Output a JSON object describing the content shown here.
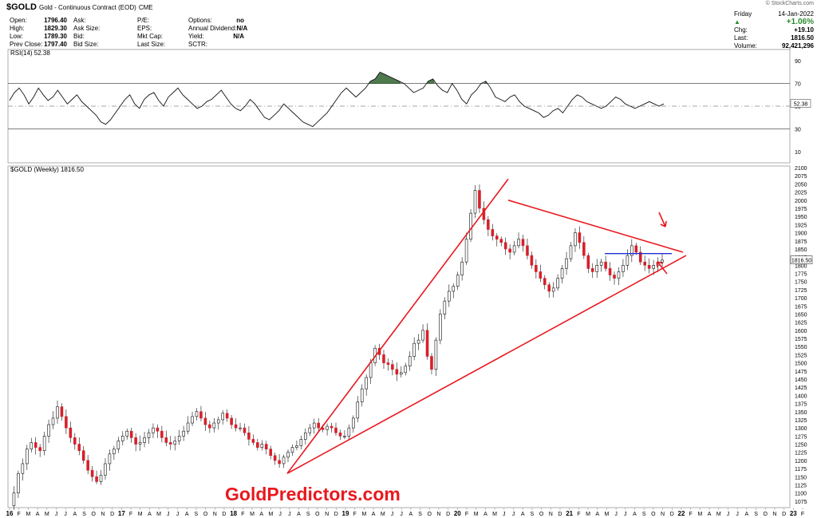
{
  "header": {
    "symbol": "$GOLD",
    "name": "Gold - Continuous Contract (EOD)",
    "exchange": "CME",
    "brand": "© StockCharts.com",
    "col1": [
      [
        "Open:",
        "1796.40"
      ],
      [
        "High:",
        "1829.30"
      ],
      [
        "Low:",
        "1789.30"
      ],
      [
        "Prev Close:",
        "1797.40"
      ]
    ],
    "col2": [
      [
        "Ask:",
        ""
      ],
      [
        "Ask Size:",
        ""
      ],
      [
        "Bid:",
        ""
      ],
      [
        "Bid Size:",
        ""
      ]
    ],
    "col3": [
      [
        "P/E:",
        ""
      ],
      [
        "EPS:",
        ""
      ],
      [
        "Mkt Cap:",
        ""
      ],
      [
        "Last Size:",
        ""
      ]
    ],
    "col4": [
      [
        "Options:",
        "no"
      ],
      [
        "Annual Dividend:",
        "N/A"
      ],
      [
        "Yield:",
        "N/A"
      ],
      [
        "SCTR:",
        ""
      ]
    ],
    "date_day": "Friday",
    "date": "14-Jan-2022",
    "change_pct": "+1.06%",
    "right": [
      [
        "Chg:",
        "+19.10"
      ],
      [
        "Last:",
        "1816.50"
      ],
      [
        "Volume:",
        "92,421,296"
      ]
    ]
  },
  "watermark": "GoldPredictors.com",
  "chart_data": [
    {
      "type": "line",
      "title": "RSI(14) 52.38",
      "current_label": "52.38",
      "ylim": [
        0,
        100
      ],
      "yticks": [
        "90",
        "70",
        "50",
        "30",
        "10"
      ],
      "reference_lines": [
        70,
        50,
        30
      ],
      "series": [
        {
          "values": [
            55,
            62,
            66,
            60,
            52,
            58,
            66,
            60,
            55,
            58,
            64,
            58,
            52,
            56,
            60,
            54,
            50,
            46,
            42,
            36,
            34,
            38,
            44,
            50,
            56,
            60,
            52,
            48,
            56,
            60,
            62,
            55,
            50,
            58,
            62,
            66,
            60,
            56,
            52,
            48,
            50,
            54,
            56,
            60,
            64,
            58,
            52,
            48,
            46,
            50,
            56,
            52,
            46,
            40,
            38,
            42,
            46,
            52,
            48,
            44,
            40,
            36,
            34,
            32,
            36,
            40,
            44,
            50,
            56,
            62,
            66,
            62,
            58,
            62,
            66,
            72,
            74,
            80,
            78,
            76,
            74,
            72,
            70,
            66,
            62,
            64,
            66,
            72,
            74,
            68,
            64,
            62,
            70,
            64,
            56,
            52,
            60,
            64,
            70,
            72,
            66,
            58,
            56,
            54,
            58,
            60,
            54,
            50,
            48,
            46,
            44,
            40,
            42,
            46,
            48,
            44,
            50,
            56,
            60,
            58,
            54,
            52,
            50,
            48,
            50,
            54,
            58,
            56,
            52,
            50,
            48,
            50,
            52,
            54,
            52,
            50,
            52
          ]
        }
      ]
    },
    {
      "type": "bar",
      "title": "$GOLD (Weekly) 1816.50",
      "current_label": "1816.50",
      "ylim": [
        1055,
        2105
      ],
      "yticks": [
        "2100",
        "2075",
        "2050",
        "2025",
        "2000",
        "1975",
        "1950",
        "1925",
        "1900",
        "1875",
        "1850",
        "1825",
        "1800",
        "1775",
        "1750",
        "1725",
        "1700",
        "1675",
        "1650",
        "1625",
        "1600",
        "1575",
        "1550",
        "1525",
        "1500",
        "1475",
        "1450",
        "1425",
        "1400",
        "1375",
        "1350",
        "1325",
        "1300",
        "1275",
        "1250",
        "1225",
        "1200",
        "1175",
        "1150",
        "1125",
        "1100",
        "1075"
      ],
      "x_labels": [
        "16",
        "F",
        "M",
        "A",
        "M",
        "J",
        "J",
        "A",
        "S",
        "O",
        "N",
        "D",
        "17",
        "F",
        "M",
        "A",
        "M",
        "J",
        "J",
        "A",
        "S",
        "O",
        "N",
        "D",
        "18",
        "F",
        "M",
        "A",
        "M",
        "J",
        "J",
        "A",
        "S",
        "O",
        "N",
        "D",
        "19",
        "F",
        "M",
        "A",
        "M",
        "J",
        "J",
        "A",
        "S",
        "O",
        "N",
        "D",
        "20",
        "F",
        "M",
        "A",
        "M",
        "J",
        "J",
        "A",
        "S",
        "O",
        "N",
        "D",
        "21",
        "F",
        "M",
        "A",
        "M",
        "J",
        "J",
        "A",
        "S",
        "O",
        "N",
        "D",
        "22",
        "F",
        "M",
        "A",
        "M",
        "J",
        "J",
        "A",
        "S",
        "O",
        "N",
        "D",
        "23",
        "F"
      ],
      "close_series": [
        1061,
        1100,
        1160,
        1190,
        1235,
        1255,
        1240,
        1230,
        1275,
        1310,
        1330,
        1365,
        1335,
        1300,
        1270,
        1250,
        1230,
        1200,
        1170,
        1150,
        1135,
        1155,
        1190,
        1220,
        1235,
        1260,
        1275,
        1290,
        1270,
        1250,
        1255,
        1270,
        1285,
        1300,
        1290,
        1270,
        1255,
        1250,
        1260,
        1275,
        1290,
        1315,
        1335,
        1350,
        1330,
        1310,
        1300,
        1315,
        1325,
        1345,
        1330,
        1310,
        1300,
        1300,
        1285,
        1265,
        1255,
        1240,
        1250,
        1235,
        1215,
        1200,
        1190,
        1210,
        1225,
        1240,
        1245,
        1265,
        1285,
        1300,
        1315,
        1300,
        1295,
        1305,
        1300,
        1285,
        1275,
        1275,
        1300,
        1330,
        1380,
        1420,
        1455,
        1500,
        1545,
        1525,
        1500,
        1495,
        1480,
        1465,
        1470,
        1490,
        1520,
        1560,
        1570,
        1600,
        1520,
        1480,
        1570,
        1650,
        1690,
        1720,
        1735,
        1770,
        1810,
        1880,
        1960,
        2030,
        1975,
        1940,
        1910,
        1890,
        1880,
        1870,
        1850,
        1840,
        1860,
        1880,
        1860,
        1830,
        1800,
        1780,
        1760,
        1740,
        1720,
        1730,
        1760,
        1790,
        1820,
        1860,
        1900,
        1870,
        1830,
        1790,
        1780,
        1800,
        1810,
        1790,
        1770,
        1760,
        1780,
        1800,
        1830,
        1860,
        1840,
        1810,
        1800,
        1790,
        1800,
        1810,
        1816
      ],
      "annotations": [
        "triangle-upper-trendline",
        "triangle-lower-trendline",
        "rising-wedge-left",
        "breakout-arrow-down",
        "breakout-arrow-up"
      ]
    }
  ]
}
